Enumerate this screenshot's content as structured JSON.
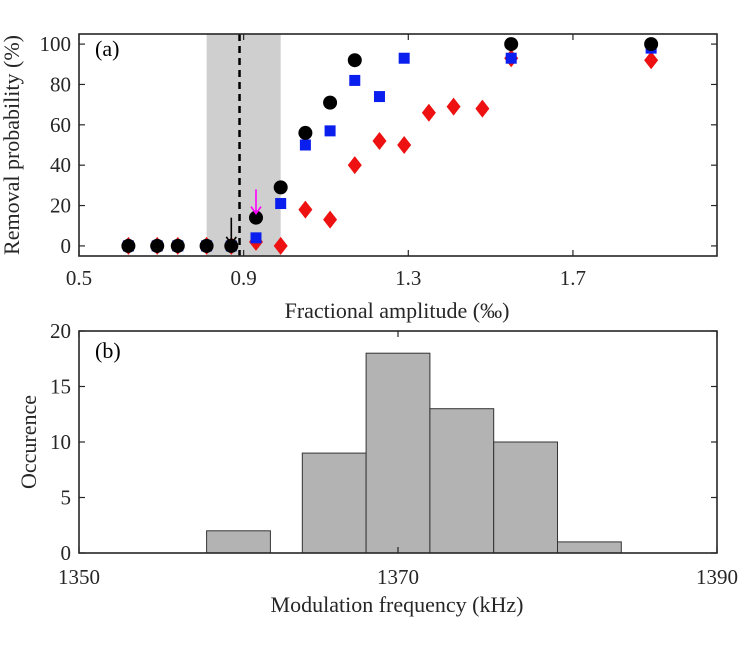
{
  "chart_data": [
    {
      "type": "scatter",
      "panel_label": "(a)",
      "xlabel": "Fractional amplitude (‰)",
      "ylabel": "Removal probability (%)",
      "xlim": [
        0.5,
        2.05
      ],
      "ylim": [
        -5,
        105
      ],
      "xticks": [
        0.5,
        0.9,
        1.3,
        1.7
      ],
      "xtick_labels": [
        "0.5",
        "0.9",
        "1.3",
        "1.7"
      ],
      "yticks": [
        0,
        20,
        40,
        60,
        80,
        100
      ],
      "ytick_labels": [
        "0",
        "20",
        "40",
        "60",
        "80",
        "100"
      ],
      "shaded_region": {
        "x_start": 0.81,
        "x_end": 0.99,
        "color": "#cfcfcf"
      },
      "threshold_line": {
        "x": 0.89,
        "style": "dashed",
        "color": "#000000"
      },
      "series": [
        {
          "name": "red-diamond",
          "marker": "diamond",
          "color": "#ee1111",
          "x": [
            0.62,
            0.69,
            0.74,
            0.81,
            0.87,
            0.93,
            0.99,
            1.05,
            1.11,
            1.17,
            1.23,
            1.29,
            1.35,
            1.41,
            1.48,
            1.55,
            1.89
          ],
          "y": [
            0,
            0,
            0,
            0,
            0,
            2,
            0,
            18,
            13,
            40,
            52,
            50,
            66,
            69,
            68,
            93,
            92
          ]
        },
        {
          "name": "blue-square",
          "marker": "square",
          "color": "#0a1fee",
          "x": [
            0.62,
            0.69,
            0.74,
            0.81,
            0.87,
            0.93,
            0.99,
            1.05,
            1.11,
            1.17,
            1.23,
            1.29,
            1.55,
            1.89
          ],
          "y": [
            0,
            0,
            0,
            0,
            0,
            4,
            21,
            50,
            57,
            82,
            74,
            93,
            93,
            98
          ]
        },
        {
          "name": "black-circle",
          "marker": "circle",
          "color": "#000000",
          "x": [
            0.62,
            0.69,
            0.74,
            0.81,
            0.87,
            0.93,
            0.99,
            1.05,
            1.11,
            1.17,
            1.55,
            1.89
          ],
          "y": [
            0,
            0,
            0,
            0,
            0,
            14,
            29,
            56,
            71,
            92,
            100,
            100
          ]
        }
      ],
      "annotations": [
        {
          "type": "arrow",
          "color": "#ff00ff",
          "x": 0.93,
          "y_from": 28,
          "y_to": 16
        },
        {
          "type": "arrow",
          "color": "#000000",
          "x": 0.87,
          "y_from": 14,
          "y_to": 1
        }
      ]
    },
    {
      "type": "bar",
      "subtype": "histogram",
      "panel_label": "(b)",
      "xlabel": "Modulation frequency (kHz)",
      "ylabel": "Occurence",
      "xlim": [
        1350,
        1390
      ],
      "ylim": [
        0,
        20
      ],
      "xticks": [
        1350,
        1370,
        1390
      ],
      "xtick_labels": [
        "1350",
        "1370",
        "1390"
      ],
      "yticks": [
        0,
        5,
        10,
        15,
        20
      ],
      "ytick_labels": [
        "0",
        "5",
        "10",
        "15",
        "20"
      ],
      "bar_color": "#b3b3b3",
      "bins": [
        {
          "start": 1358,
          "end": 1362,
          "value": 2
        },
        {
          "start": 1362,
          "end": 1364,
          "value": 0
        },
        {
          "start": 1364,
          "end": 1368,
          "value": 9
        },
        {
          "start": 1368,
          "end": 1372,
          "value": 18
        },
        {
          "start": 1372,
          "end": 1376,
          "value": 13
        },
        {
          "start": 1376,
          "end": 1380,
          "value": 10
        },
        {
          "start": 1380,
          "end": 1384,
          "value": 1
        }
      ]
    }
  ]
}
